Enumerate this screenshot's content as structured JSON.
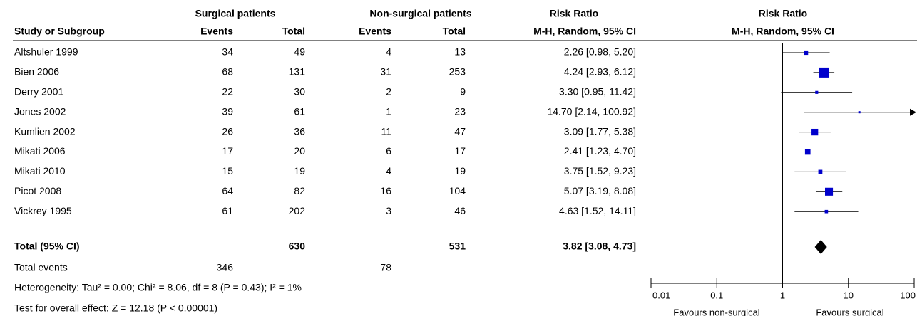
{
  "chart_data": {
    "type": "forest",
    "headers": {
      "group1": "Surgical patients",
      "group2": "Non-surgical patients",
      "effect": "Risk Ratio",
      "plot": "Risk Ratio",
      "study": "Study or Subgroup",
      "events1": "Events",
      "total1": "Total",
      "events2": "Events",
      "total2": "Total",
      "method": "M-H, Random, 95% CI",
      "plot_method": "M-H, Random, 95% CI"
    },
    "studies": [
      {
        "name": "Altshuler 1999",
        "events1": 34,
        "total1": 49,
        "events2": 4,
        "total2": 13,
        "rr": {
          "value": 2.26,
          "lower": 0.98,
          "upper": 5.2,
          "label": "2.26 [0.98, 5.20]"
        }
      },
      {
        "name": "Bien 2006",
        "events1": 68,
        "total1": 131,
        "events2": 31,
        "total2": 253,
        "rr": {
          "value": 4.24,
          "lower": 2.93,
          "upper": 6.12,
          "label": "4.24 [2.93, 6.12]"
        }
      },
      {
        "name": "Derry 2001",
        "events1": 22,
        "total1": 30,
        "events2": 2,
        "total2": 9,
        "rr": {
          "value": 3.3,
          "lower": 0.95,
          "upper": 11.42,
          "label": "3.30 [0.95, 11.42]"
        }
      },
      {
        "name": "Jones 2002",
        "events1": 39,
        "total1": 61,
        "events2": 1,
        "total2": 23,
        "rr": {
          "value": 14.7,
          "lower": 2.14,
          "upper": 100.92,
          "label": "14.70 [2.14, 100.92]"
        }
      },
      {
        "name": "Kumlien 2002",
        "events1": 26,
        "total1": 36,
        "events2": 11,
        "total2": 47,
        "rr": {
          "value": 3.09,
          "lower": 1.77,
          "upper": 5.38,
          "label": "3.09 [1.77, 5.38]"
        }
      },
      {
        "name": "Mikati 2006",
        "events1": 17,
        "total1": 20,
        "events2": 6,
        "total2": 17,
        "rr": {
          "value": 2.41,
          "lower": 1.23,
          "upper": 4.7,
          "label": "2.41 [1.23, 4.70]"
        }
      },
      {
        "name": "Mikati 2010",
        "events1": 15,
        "total1": 19,
        "events2": 4,
        "total2": 19,
        "rr": {
          "value": 3.75,
          "lower": 1.52,
          "upper": 9.23,
          "label": "3.75 [1.52, 9.23]"
        }
      },
      {
        "name": "Picot 2008",
        "events1": 64,
        "total1": 82,
        "events2": 16,
        "total2": 104,
        "rr": {
          "value": 5.07,
          "lower": 3.19,
          "upper": 8.08,
          "label": "5.07 [3.19, 8.08]"
        }
      },
      {
        "name": "Vickrey 1995",
        "events1": 61,
        "total1": 202,
        "events2": 3,
        "total2": 46,
        "rr": {
          "value": 4.63,
          "lower": 1.52,
          "upper": 14.11,
          "label": "4.63 [1.52, 14.11]"
        }
      }
    ],
    "total": {
      "name": "Total (95% CI)",
      "total1": 630,
      "total2": 531,
      "rr": {
        "value": 3.82,
        "lower": 3.08,
        "upper": 4.73,
        "label": "3.82 [3.08, 4.73]"
      }
    },
    "total_events": {
      "name": "Total events",
      "events1": 346,
      "events2": 78
    },
    "heterogeneity": "Heterogeneity: Tau² = 0.00; Chi² = 8.06, df = 8 (P = 0.43); I² = 1%",
    "overall_effect": "Test for overall effect: Z = 12.18 (P < 0.00001)",
    "xlim": [
      0.01,
      100
    ],
    "xticks": [
      0.01,
      0.1,
      1,
      10,
      100
    ],
    "log_x": true,
    "x_label_left": "Favours non-surgical",
    "x_label_right": "Favours surgical",
    "color": "#0000cc"
  }
}
